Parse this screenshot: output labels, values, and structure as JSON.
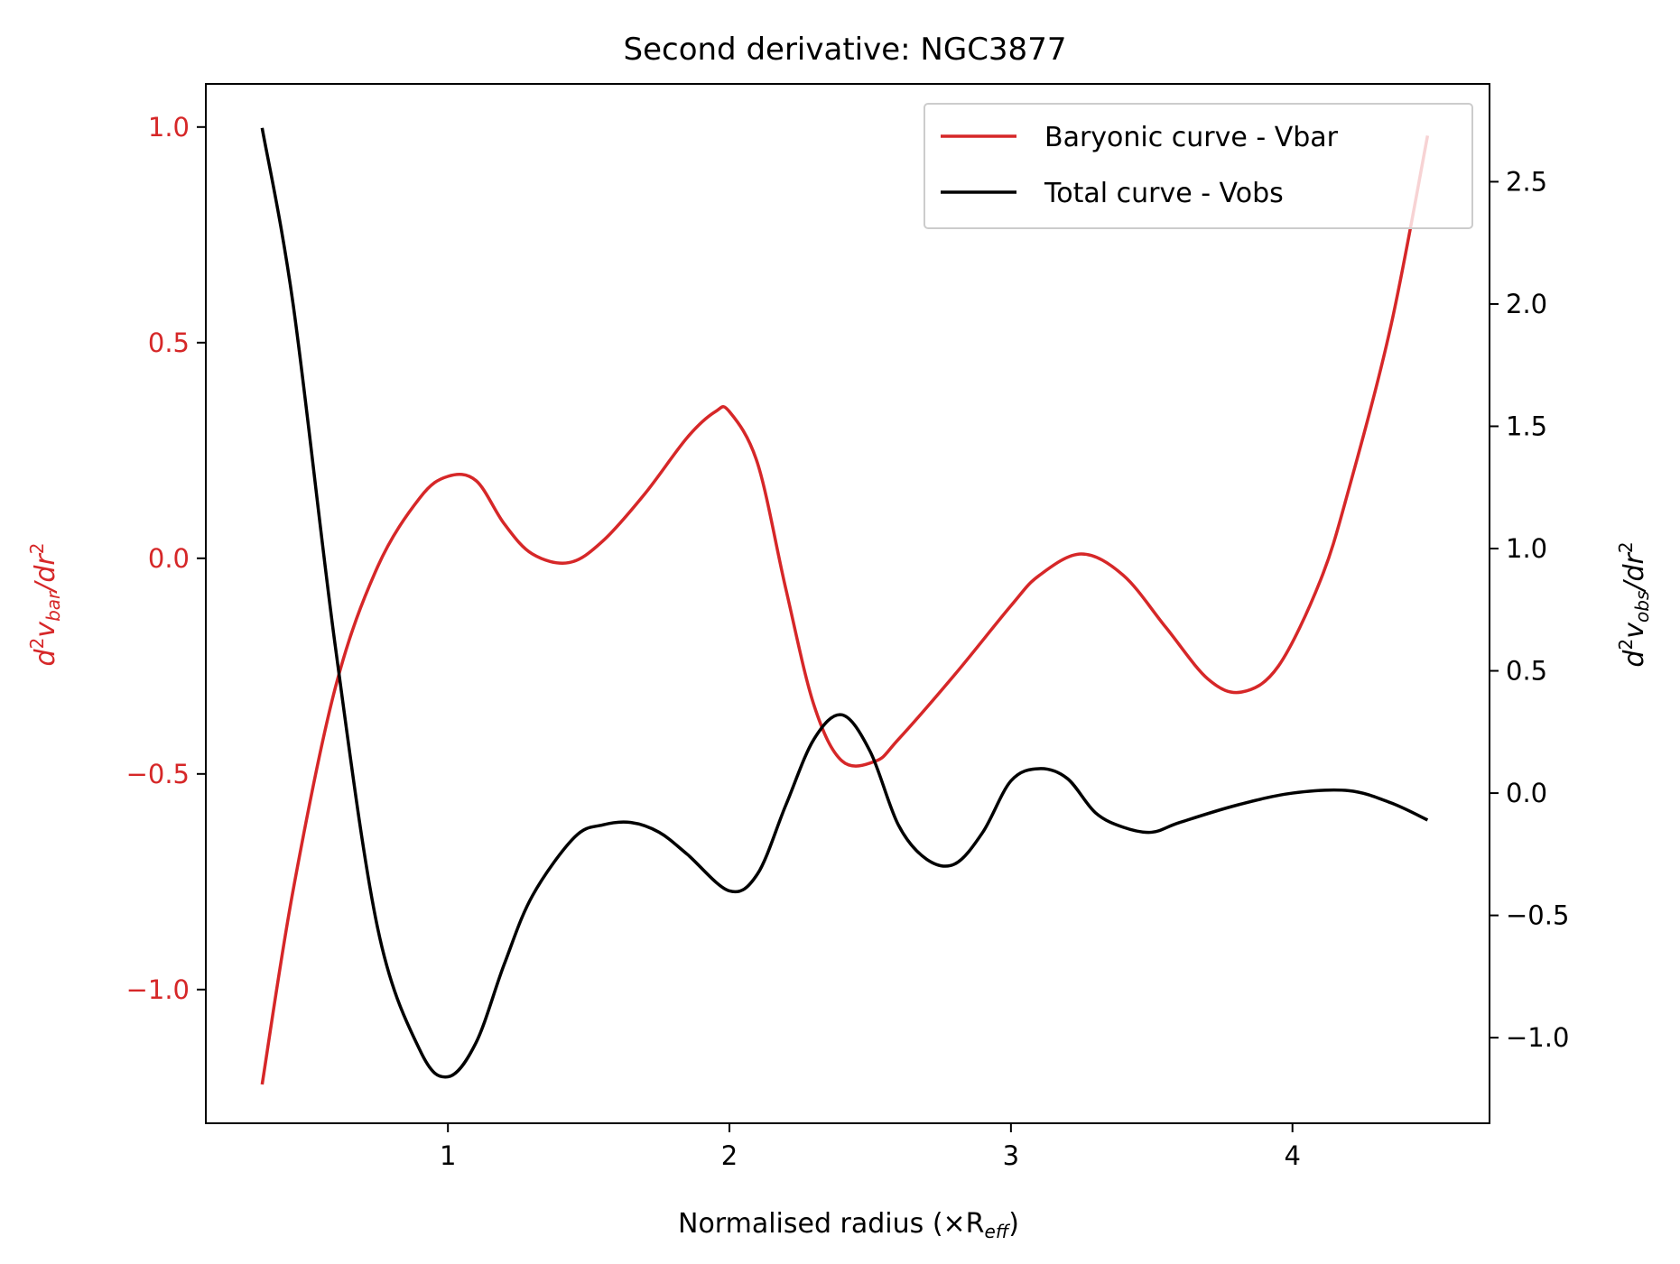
{
  "chart_data": {
    "type": "line",
    "title": "Second derivative: NGC3877",
    "xlabel": "Normalised radius (×R",
    "xlabel_sub": "eff",
    "xlabel_close": ")",
    "ylabel_left": {
      "main": "d",
      "sup1": "2",
      "v": "v",
      "sub": "bar",
      "tail": "/dr",
      "sup2": "2"
    },
    "ylabel_right": {
      "main": "d",
      "sup1": "2",
      "v": "v",
      "sub": "obs",
      "tail": "/dr",
      "sup2": "2"
    },
    "xlim": [
      0.14,
      4.7
    ],
    "ylim_left": [
      -1.31,
      1.1
    ],
    "ylim_right": [
      -1.35,
      2.9
    ],
    "x_ticks": [
      {
        "value": 1,
        "label": "1"
      },
      {
        "value": 2,
        "label": "2"
      },
      {
        "value": 3,
        "label": "3"
      },
      {
        "value": 4,
        "label": "4"
      }
    ],
    "y_ticks_left": [
      {
        "value": 1.0,
        "label": "1.0"
      },
      {
        "value": 0.5,
        "label": "0.5"
      },
      {
        "value": 0.0,
        "label": "0.0"
      },
      {
        "value": -0.5,
        "label": "−0.5"
      },
      {
        "value": -1.0,
        "label": "−1.0"
      }
    ],
    "y_ticks_right": [
      {
        "value": 2.5,
        "label": "2.5"
      },
      {
        "value": 2.0,
        "label": "2.0"
      },
      {
        "value": 1.5,
        "label": "1.5"
      },
      {
        "value": 1.0,
        "label": "1.0"
      },
      {
        "value": 0.5,
        "label": "0.5"
      },
      {
        "value": 0.0,
        "label": "0.0"
      },
      {
        "value": -0.5,
        "label": "−0.5"
      },
      {
        "value": -1.0,
        "label": "−1.0"
      }
    ],
    "grid": false,
    "legend_position": "top-right",
    "series": [
      {
        "name": "Baryonic curve - Vbar",
        "axis": "left",
        "color": "#d62728",
        "x": [
          0.34,
          0.45,
          0.6,
          0.75,
          0.9,
          1.0,
          1.1,
          1.2,
          1.3,
          1.43,
          1.55,
          1.7,
          1.85,
          1.95,
          2.0,
          2.1,
          2.2,
          2.3,
          2.4,
          2.52,
          2.6,
          2.8,
          3.0,
          3.1,
          3.25,
          3.4,
          3.55,
          3.7,
          3.82,
          3.95,
          4.1,
          4.2,
          4.35,
          4.48
        ],
        "y": [
          -1.22,
          -0.77,
          -0.3,
          -0.02,
          0.14,
          0.19,
          0.18,
          0.08,
          0.01,
          -0.01,
          0.04,
          0.15,
          0.28,
          0.34,
          0.34,
          0.22,
          -0.07,
          -0.34,
          -0.47,
          -0.47,
          -0.42,
          -0.27,
          -0.11,
          -0.04,
          0.01,
          -0.04,
          -0.16,
          -0.28,
          -0.31,
          -0.25,
          -0.05,
          0.16,
          0.54,
          0.98
        ]
      },
      {
        "name": "Total curve - Vobs",
        "axis": "right",
        "color": "#000000",
        "x": [
          0.34,
          0.45,
          0.6,
          0.75,
          0.9,
          1.0,
          1.1,
          1.2,
          1.3,
          1.45,
          1.55,
          1.65,
          1.75,
          1.85,
          2.0,
          2.1,
          2.2,
          2.3,
          2.4,
          2.5,
          2.6,
          2.7,
          2.8,
          2.9,
          3.0,
          3.1,
          3.2,
          3.3,
          3.4,
          3.5,
          3.6,
          3.8,
          4.0,
          4.2,
          4.35,
          4.48
        ],
        "y": [
          2.72,
          2.0,
          0.6,
          -0.55,
          -1.05,
          -1.16,
          -1.02,
          -0.7,
          -0.42,
          -0.18,
          -0.13,
          -0.12,
          -0.16,
          -0.25,
          -0.4,
          -0.33,
          -0.05,
          0.22,
          0.32,
          0.17,
          -0.13,
          -0.27,
          -0.29,
          -0.16,
          0.05,
          0.1,
          0.06,
          -0.08,
          -0.14,
          -0.16,
          -0.12,
          -0.05,
          0.0,
          0.01,
          -0.04,
          -0.11
        ]
      }
    ]
  }
}
